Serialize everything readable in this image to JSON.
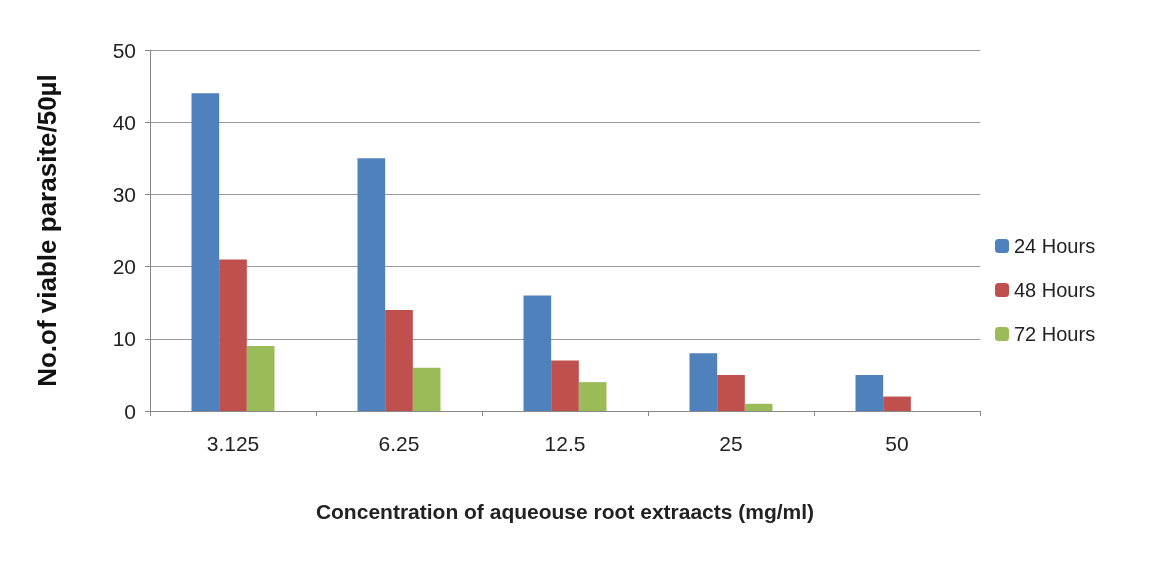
{
  "chart_data": {
    "type": "bar",
    "xlabel": "Concentration of aqueouse root extraacts (mg/ml)",
    "ylabel": "No.of viable parasite/50µl",
    "categories": [
      "3.125",
      "6.25",
      "12.5",
      "25",
      "50"
    ],
    "series": [
      {
        "name": "24 Hours",
        "color": "#4f81bd",
        "values": [
          44,
          35,
          16,
          8,
          5
        ]
      },
      {
        "name": "48 Hours",
        "color": "#c0504d",
        "values": [
          21,
          14,
          7,
          5,
          2
        ]
      },
      {
        "name": "72 Hours",
        "color": "#9bbb59",
        "values": [
          9,
          6,
          4,
          1,
          0
        ]
      }
    ],
    "ylim": [
      0,
      50
    ],
    "yticks": [
      0,
      10,
      20,
      30,
      40,
      50
    ],
    "grid": "y",
    "legend": "right"
  }
}
